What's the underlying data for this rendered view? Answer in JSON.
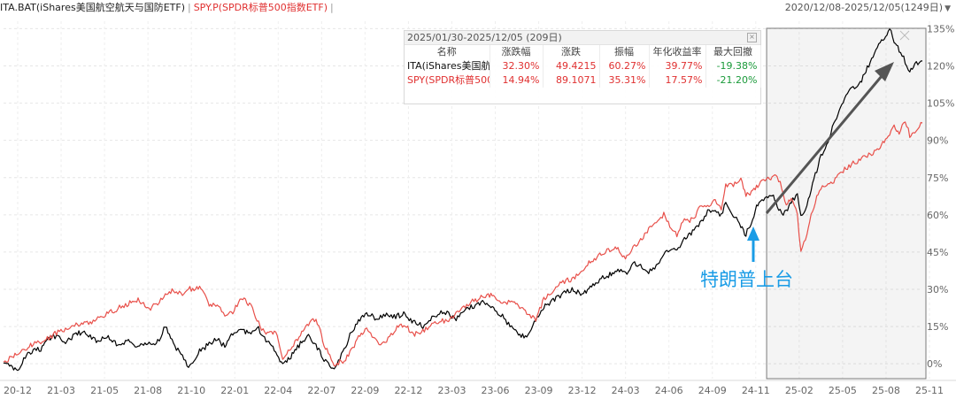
{
  "header": {
    "series1_label": "ITA.BAT(iShares美国航空航天与国防ETF)",
    "series2_label": "SPY.P(SPDR标普500指数ETF)",
    "range_label": "2020/12/08-2025/12/05(1249日)"
  },
  "stats_panel": {
    "title": "2025/01/30-2025/12/05 (209日)",
    "columns": [
      "名称",
      "涨跌幅",
      "涨跌",
      "振幅",
      "年化收益率",
      "最大回撤"
    ],
    "rows": [
      {
        "name": "ITA(iShares美国航空",
        "pct": "32.30%",
        "chg": "49.4215",
        "amp": "60.27%",
        "ann": "39.77%",
        "mdd": "-19.38%",
        "color": "#000000"
      },
      {
        "name": "SPY(SPDR标普500|",
        "pct": "14.94%",
        "chg": "89.1071",
        "amp": "35.31%",
        "ann": "17.57%",
        "mdd": "-21.20%",
        "color": "#e03030"
      }
    ]
  },
  "annotation": {
    "text": "特朗普上台",
    "color": "#1a9ce6"
  },
  "chart_data": {
    "type": "line",
    "x_tick_labels": [
      "20-12",
      "21-03",
      "21-05",
      "21-08",
      "21-10",
      "22-01",
      "22-04",
      "22-07",
      "22-09",
      "22-12",
      "23-03",
      "23-06",
      "23-09",
      "23-12",
      "24-03",
      "24-06",
      "24-09",
      "24-11",
      "25-02",
      "25-05",
      "25-08",
      "25-11"
    ],
    "y_tick_labels": [
      "0%",
      "15%",
      "30%",
      "45%",
      "60%",
      "75%",
      "90%",
      "105%",
      "120%",
      "135%"
    ],
    "y_ticks": [
      0,
      15,
      30,
      45,
      60,
      75,
      90,
      105,
      120,
      135
    ],
    "ylim": [
      -6,
      138
    ],
    "x_range": [
      "2020-12-08",
      "2025-12-05"
    ],
    "grid": true,
    "highlight_range": [
      "2025-01-30",
      "2025-12-05"
    ],
    "series": [
      {
        "name": "ITA.BAT(iShares美国航空航天与国防ETF)",
        "color": "#000000",
        "points": [
          [
            "2020-12-08",
            0
          ],
          [
            "2020-12-20",
            -1
          ],
          [
            "2021-01-05",
            -3
          ],
          [
            "2021-01-20",
            3
          ],
          [
            "2021-02-05",
            5
          ],
          [
            "2021-02-20",
            6
          ],
          [
            "2021-03-05",
            10
          ],
          [
            "2021-03-20",
            11
          ],
          [
            "2021-04-10",
            9
          ],
          [
            "2021-05-01",
            12
          ],
          [
            "2021-05-20",
            13
          ],
          [
            "2021-06-10",
            9
          ],
          [
            "2021-07-01",
            11
          ],
          [
            "2021-07-20",
            8
          ],
          [
            "2021-08-10",
            9
          ],
          [
            "2021-09-01",
            7
          ],
          [
            "2021-09-20",
            8
          ],
          [
            "2021-10-10",
            9
          ],
          [
            "2021-10-25",
            15
          ],
          [
            "2021-11-10",
            8
          ],
          [
            "2021-11-25",
            4
          ],
          [
            "2021-12-10",
            -1
          ],
          [
            "2022-01-01",
            5
          ],
          [
            "2022-01-20",
            8
          ],
          [
            "2022-02-05",
            10
          ],
          [
            "2022-02-20",
            7
          ],
          [
            "2022-03-05",
            12
          ],
          [
            "2022-03-25",
            14
          ],
          [
            "2022-04-10",
            12
          ],
          [
            "2022-04-25",
            15
          ],
          [
            "2022-05-10",
            10
          ],
          [
            "2022-06-01",
            5
          ],
          [
            "2022-06-15",
            -1
          ],
          [
            "2022-07-01",
            3
          ],
          [
            "2022-07-20",
            8
          ],
          [
            "2022-08-05",
            11
          ],
          [
            "2022-08-20",
            7
          ],
          [
            "2022-09-05",
            2
          ],
          [
            "2022-09-25",
            -3
          ],
          [
            "2022-10-15",
            6
          ],
          [
            "2022-11-01",
            14
          ],
          [
            "2022-11-15",
            18
          ],
          [
            "2022-12-01",
            20
          ],
          [
            "2022-12-20",
            18
          ],
          [
            "2023-01-10",
            20
          ],
          [
            "2023-01-25",
            19
          ],
          [
            "2023-02-10",
            20
          ],
          [
            "2023-03-01",
            17
          ],
          [
            "2023-03-20",
            15
          ],
          [
            "2023-04-10",
            19
          ],
          [
            "2023-04-25",
            21
          ],
          [
            "2023-05-10",
            20
          ],
          [
            "2023-05-25",
            18
          ],
          [
            "2023-06-15",
            22
          ],
          [
            "2023-07-05",
            24
          ],
          [
            "2023-07-25",
            25
          ],
          [
            "2023-08-10",
            22
          ],
          [
            "2023-08-25",
            19
          ],
          [
            "2023-09-15",
            14
          ],
          [
            "2023-10-01",
            11
          ],
          [
            "2023-10-15",
            12
          ],
          [
            "2023-10-30",
            18
          ],
          [
            "2023-11-15",
            23
          ],
          [
            "2023-12-01",
            25
          ],
          [
            "2023-12-20",
            28
          ],
          [
            "2024-01-10",
            30
          ],
          [
            "2024-01-30",
            28
          ],
          [
            "2024-02-15",
            31
          ],
          [
            "2024-03-05",
            34
          ],
          [
            "2024-03-25",
            36
          ],
          [
            "2024-04-10",
            38
          ],
          [
            "2024-04-25",
            36
          ],
          [
            "2024-05-10",
            41
          ],
          [
            "2024-05-25",
            39
          ],
          [
            "2024-06-10",
            37
          ],
          [
            "2024-06-25",
            39
          ],
          [
            "2024-07-10",
            44
          ],
          [
            "2024-07-25",
            46
          ],
          [
            "2024-08-05",
            45
          ],
          [
            "2024-08-20",
            50
          ],
          [
            "2024-09-05",
            53
          ],
          [
            "2024-09-20",
            57
          ],
          [
            "2024-10-05",
            61
          ],
          [
            "2024-10-20",
            62
          ],
          [
            "2024-11-01",
            60
          ],
          [
            "2024-11-10",
            65
          ],
          [
            "2024-11-25",
            60
          ],
          [
            "2024-12-10",
            55
          ],
          [
            "2024-12-20",
            52
          ],
          [
            "2025-01-05",
            60
          ],
          [
            "2025-01-15",
            66
          ],
          [
            "2025-01-30",
            67
          ],
          [
            "2025-02-10",
            68
          ],
          [
            "2025-02-20",
            64
          ],
          [
            "2025-03-01",
            60
          ],
          [
            "2025-03-10",
            62
          ],
          [
            "2025-03-20",
            65
          ],
          [
            "2025-04-01",
            68
          ],
          [
            "2025-04-08",
            59
          ],
          [
            "2025-04-20",
            64
          ],
          [
            "2025-05-01",
            72
          ],
          [
            "2025-05-15",
            82
          ],
          [
            "2025-06-01",
            90
          ],
          [
            "2025-06-15",
            98
          ],
          [
            "2025-07-01",
            106
          ],
          [
            "2025-07-15",
            110
          ],
          [
            "2025-08-01",
            112
          ],
          [
            "2025-08-15",
            118
          ],
          [
            "2025-09-01",
            125
          ],
          [
            "2025-09-15",
            130
          ],
          [
            "2025-10-01",
            135
          ],
          [
            "2025-10-10",
            130
          ],
          [
            "2025-10-20",
            126
          ],
          [
            "2025-11-01",
            122
          ],
          [
            "2025-11-10",
            118
          ],
          [
            "2025-11-20",
            121
          ],
          [
            "2025-12-05",
            122
          ]
        ]
      },
      {
        "name": "SPY.P(SPDR标普500指数ETF)",
        "color": "#e8504a",
        "points": [
          [
            "2020-12-08",
            0
          ],
          [
            "2020-12-20",
            2
          ],
          [
            "2021-01-05",
            4
          ],
          [
            "2021-01-20",
            6
          ],
          [
            "2021-02-05",
            8
          ],
          [
            "2021-02-20",
            9
          ],
          [
            "2021-03-05",
            10
          ],
          [
            "2021-03-20",
            12
          ],
          [
            "2021-04-10",
            14
          ],
          [
            "2021-05-01",
            16
          ],
          [
            "2021-05-20",
            16
          ],
          [
            "2021-06-10",
            18
          ],
          [
            "2021-07-01",
            20
          ],
          [
            "2021-07-20",
            22
          ],
          [
            "2021-08-10",
            24
          ],
          [
            "2021-09-01",
            26
          ],
          [
            "2021-09-20",
            22
          ],
          [
            "2021-10-10",
            24
          ],
          [
            "2021-10-25",
            28
          ],
          [
            "2021-11-10",
            30
          ],
          [
            "2021-11-25",
            28
          ],
          [
            "2021-12-10",
            30
          ],
          [
            "2022-01-01",
            31
          ],
          [
            "2022-01-20",
            24
          ],
          [
            "2022-02-05",
            23
          ],
          [
            "2022-02-20",
            20
          ],
          [
            "2022-03-05",
            20
          ],
          [
            "2022-03-25",
            27
          ],
          [
            "2022-04-10",
            24
          ],
          [
            "2022-04-25",
            18
          ],
          [
            "2022-05-10",
            12
          ],
          [
            "2022-06-01",
            13
          ],
          [
            "2022-06-15",
            2
          ],
          [
            "2022-07-01",
            6
          ],
          [
            "2022-07-20",
            12
          ],
          [
            "2022-08-05",
            16
          ],
          [
            "2022-08-20",
            18
          ],
          [
            "2022-09-05",
            8
          ],
          [
            "2022-09-25",
            0
          ],
          [
            "2022-10-15",
            1
          ],
          [
            "2022-11-01",
            6
          ],
          [
            "2022-11-15",
            12
          ],
          [
            "2022-12-01",
            14
          ],
          [
            "2022-12-20",
            8
          ],
          [
            "2023-01-10",
            10
          ],
          [
            "2023-01-25",
            14
          ],
          [
            "2023-02-10",
            16
          ],
          [
            "2023-03-01",
            12
          ],
          [
            "2023-03-20",
            13
          ],
          [
            "2023-04-10",
            16
          ],
          [
            "2023-04-25",
            17
          ],
          [
            "2023-05-10",
            18
          ],
          [
            "2023-05-25",
            20
          ],
          [
            "2023-06-15",
            24
          ],
          [
            "2023-07-05",
            26
          ],
          [
            "2023-07-25",
            28
          ],
          [
            "2023-08-10",
            27
          ],
          [
            "2023-08-25",
            24
          ],
          [
            "2023-09-15",
            25
          ],
          [
            "2023-10-01",
            22
          ],
          [
            "2023-10-15",
            20
          ],
          [
            "2023-10-30",
            18
          ],
          [
            "2023-11-15",
            26
          ],
          [
            "2023-12-01",
            29
          ],
          [
            "2023-12-20",
            33
          ],
          [
            "2024-01-10",
            34
          ],
          [
            "2024-01-30",
            38
          ],
          [
            "2024-02-15",
            41
          ],
          [
            "2024-03-05",
            44
          ],
          [
            "2024-03-25",
            46
          ],
          [
            "2024-04-10",
            47
          ],
          [
            "2024-04-25",
            42
          ],
          [
            "2024-05-10",
            47
          ],
          [
            "2024-05-25",
            50
          ],
          [
            "2024-06-10",
            54
          ],
          [
            "2024-06-25",
            57
          ],
          [
            "2024-07-10",
            60
          ],
          [
            "2024-07-25",
            55
          ],
          [
            "2024-08-05",
            52
          ],
          [
            "2024-08-20",
            58
          ],
          [
            "2024-09-05",
            58
          ],
          [
            "2024-09-20",
            63
          ],
          [
            "2024-10-05",
            64
          ],
          [
            "2024-10-20",
            66
          ],
          [
            "2024-11-01",
            63
          ],
          [
            "2024-11-10",
            72
          ],
          [
            "2024-11-25",
            72
          ],
          [
            "2024-12-10",
            74
          ],
          [
            "2024-12-20",
            68
          ],
          [
            "2025-01-05",
            70
          ],
          [
            "2025-01-15",
            72
          ],
          [
            "2025-01-30",
            75
          ],
          [
            "2025-02-10",
            75
          ],
          [
            "2025-02-20",
            76
          ],
          [
            "2025-03-01",
            71
          ],
          [
            "2025-03-10",
            64
          ],
          [
            "2025-03-20",
            66
          ],
          [
            "2025-04-01",
            60
          ],
          [
            "2025-04-08",
            45
          ],
          [
            "2025-04-20",
            52
          ],
          [
            "2025-05-01",
            62
          ],
          [
            "2025-05-15",
            70
          ],
          [
            "2025-06-01",
            72
          ],
          [
            "2025-06-15",
            74
          ],
          [
            "2025-07-01",
            78
          ],
          [
            "2025-07-15",
            80
          ],
          [
            "2025-08-01",
            82
          ],
          [
            "2025-08-15",
            84
          ],
          [
            "2025-09-01",
            85
          ],
          [
            "2025-09-15",
            88
          ],
          [
            "2025-10-01",
            92
          ],
          [
            "2025-10-10",
            96
          ],
          [
            "2025-10-20",
            93
          ],
          [
            "2025-11-01",
            98
          ],
          [
            "2025-11-10",
            92
          ],
          [
            "2025-11-20",
            93
          ],
          [
            "2025-12-05",
            97
          ]
        ]
      }
    ]
  }
}
